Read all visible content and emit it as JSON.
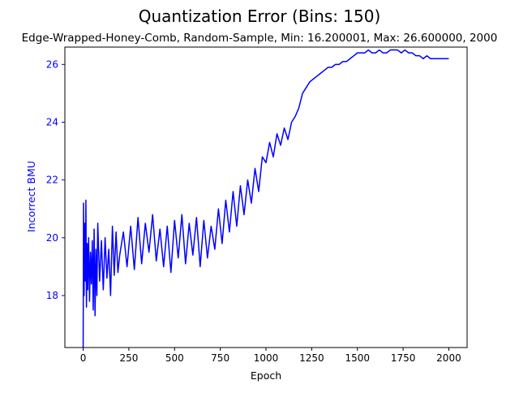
{
  "chart_data": {
    "type": "line",
    "title": "Quantization Error (Bins: 150)",
    "subtitle": "Edge-Wrapped-Honey-Comb, Random-Sample, Min: 16.200001, Max: 26.600000, 2000",
    "xlabel": "Epoch",
    "ylabel": "Incorrect BMU",
    "xlim": [
      -100,
      2100
    ],
    "ylim": [
      16.2,
      26.6
    ],
    "x_ticks": [
      0,
      250,
      500,
      750,
      1000,
      1250,
      1500,
      1750,
      2000
    ],
    "y_ticks": [
      18,
      20,
      22,
      24,
      26
    ],
    "grid": false,
    "legend": "none",
    "colors": {
      "series": "#0000ff",
      "ylabel": "#0000ff",
      "yticks": "#0000ff",
      "axes": "#000000"
    },
    "series": [
      {
        "color": "#0000ff",
        "x": [
          0,
          2,
          5,
          8,
          12,
          15,
          18,
          22,
          25,
          30,
          35,
          40,
          45,
          50,
          55,
          60,
          65,
          70,
          75,
          80,
          90,
          100,
          110,
          120,
          130,
          140,
          150,
          160,
          170,
          180,
          190,
          200,
          220,
          240,
          260,
          280,
          300,
          320,
          340,
          360,
          380,
          400,
          420,
          440,
          460,
          480,
          500,
          520,
          540,
          560,
          580,
          600,
          620,
          640,
          660,
          680,
          700,
          720,
          740,
          760,
          780,
          800,
          820,
          840,
          860,
          880,
          900,
          920,
          940,
          960,
          980,
          1000,
          1020,
          1040,
          1060,
          1080,
          1100,
          1120,
          1140,
          1160,
          1180,
          1200,
          1220,
          1240,
          1260,
          1280,
          1300,
          1320,
          1340,
          1360,
          1380,
          1400,
          1420,
          1440,
          1460,
          1480,
          1500,
          1520,
          1540,
          1560,
          1580,
          1600,
          1620,
          1640,
          1660,
          1680,
          1700,
          1720,
          1740,
          1760,
          1780,
          1800,
          1820,
          1840,
          1860,
          1880,
          1900,
          1920,
          1940,
          1960,
          1980,
          2000
        ],
        "y": [
          16.2,
          21.2,
          18.0,
          20.5,
          18.5,
          21.3,
          17.6,
          19.8,
          18.2,
          20.0,
          17.8,
          19.5,
          18.4,
          19.9,
          17.5,
          20.3,
          17.3,
          19.6,
          18.0,
          20.5,
          18.5,
          19.9,
          18.2,
          20.0,
          18.6,
          19.6,
          18.0,
          20.4,
          18.7,
          20.2,
          18.8,
          19.4,
          20.2,
          19.0,
          20.4,
          18.9,
          20.7,
          19.1,
          20.5,
          19.5,
          20.8,
          19.2,
          20.3,
          19.0,
          20.4,
          18.8,
          20.6,
          19.3,
          20.8,
          19.1,
          20.5,
          19.4,
          20.7,
          19.0,
          20.6,
          19.3,
          20.4,
          19.6,
          21.0,
          19.8,
          21.3,
          20.2,
          21.6,
          20.4,
          21.8,
          20.8,
          22.0,
          21.2,
          22.4,
          21.6,
          22.8,
          22.6,
          23.3,
          22.8,
          23.6,
          23.2,
          23.8,
          23.4,
          24.0,
          24.2,
          24.5,
          25.0,
          25.2,
          25.4,
          25.5,
          25.6,
          25.7,
          25.8,
          25.9,
          25.9,
          26.0,
          26.0,
          26.1,
          26.1,
          26.2,
          26.3,
          26.4,
          26.4,
          26.4,
          26.5,
          26.4,
          26.4,
          26.5,
          26.4,
          26.4,
          26.5,
          26.5,
          26.5,
          26.4,
          26.5,
          26.4,
          26.4,
          26.3,
          26.3,
          26.2,
          26.3,
          26.2,
          26.2,
          26.2,
          26.2,
          26.2,
          26.2
        ]
      }
    ]
  }
}
